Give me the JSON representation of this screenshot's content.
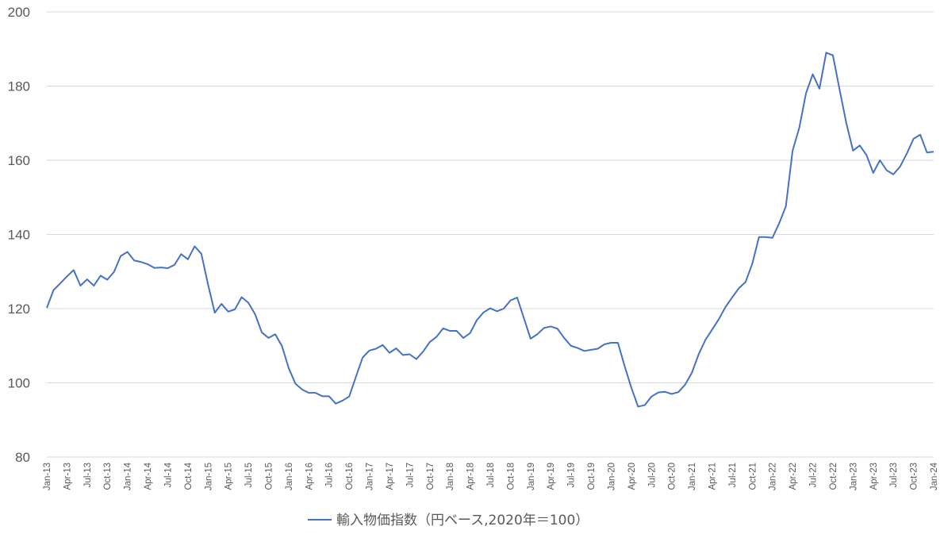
{
  "chart_data": {
    "type": "line",
    "title": "",
    "xlabel": "",
    "ylabel": "",
    "ylim": [
      80,
      200
    ],
    "yticks": [
      80,
      100,
      120,
      140,
      160,
      180,
      200
    ],
    "grid": "horizontal",
    "legend_position": "bottom",
    "x_tick_labels": [
      "Jan-13",
      "Apr-13",
      "Jul-13",
      "Oct-13",
      "Jan-14",
      "Apr-14",
      "Jul-14",
      "Oct-14",
      "Jan-15",
      "Apr-15",
      "Jul-15",
      "Oct-15",
      "Jan-16",
      "Apr-16",
      "Jul-16",
      "Oct-16",
      "Jan-17",
      "Apr-17",
      "Jul-17",
      "Oct-17",
      "Jan-18",
      "Apr-18",
      "Jul-18",
      "Oct-18",
      "Jan-19",
      "Apr-19",
      "Jul-19",
      "Oct-19",
      "Jan-20",
      "Apr-20",
      "Jul-20",
      "Oct-20",
      "Jan-21",
      "Apr-21",
      "Jul-21",
      "Oct-21",
      "Jan-22",
      "Apr-22",
      "Jul-22",
      "Oct-22",
      "Jan-23",
      "Apr-23",
      "Jul-23",
      "Oct-23",
      "Jan-24"
    ],
    "x_start": "2013-01",
    "series": [
      {
        "name": "輸入物価指数（円ベース,2020年＝100）",
        "color": "#4472c4",
        "values": [
          120.2,
          125.0,
          126.8,
          128.7,
          130.4,
          126.2,
          127.9,
          126.2,
          128.9,
          127.8,
          129.9,
          134.2,
          135.3,
          133.0,
          132.6,
          132.0,
          131.0,
          131.1,
          130.9,
          131.8,
          134.7,
          133.3,
          136.8,
          134.8,
          126.5,
          118.9,
          121.3,
          119.2,
          119.8,
          123.1,
          121.6,
          118.5,
          113.6,
          112.1,
          113.1,
          109.9,
          104.0,
          99.8,
          98.2,
          97.3,
          97.3,
          96.4,
          96.4,
          94.4,
          95.2,
          96.3,
          101.6,
          106.8,
          108.7,
          109.2,
          110.2,
          108.1,
          109.3,
          107.5,
          107.7,
          106.4,
          108.4,
          111.0,
          112.4,
          114.7,
          114.0,
          114.0,
          112.1,
          113.4,
          116.9,
          119.0,
          120.1,
          119.3,
          120.0,
          122.2,
          123.0,
          117.5,
          111.9,
          113.1,
          114.8,
          115.2,
          114.6,
          112.1,
          110.0,
          109.4,
          108.6,
          108.9,
          109.2,
          110.4,
          110.8,
          110.8,
          104.5,
          98.7,
          93.6,
          94.0,
          96.3,
          97.4,
          97.6,
          97.0,
          97.5,
          99.5,
          102.7,
          107.6,
          111.5,
          114.3,
          117.1,
          120.4,
          123.0,
          125.5,
          127.2,
          132.1,
          139.3,
          139.3,
          139.1,
          143.0,
          147.6,
          162.6,
          168.8,
          178.1,
          183.2,
          179.3,
          189.0,
          188.3,
          179.0,
          170.0,
          162.6,
          164.0,
          161.4,
          156.6,
          160.0,
          157.3,
          156.2,
          158.3,
          161.8,
          165.8,
          166.9,
          162.1,
          162.3
        ]
      }
    ]
  }
}
